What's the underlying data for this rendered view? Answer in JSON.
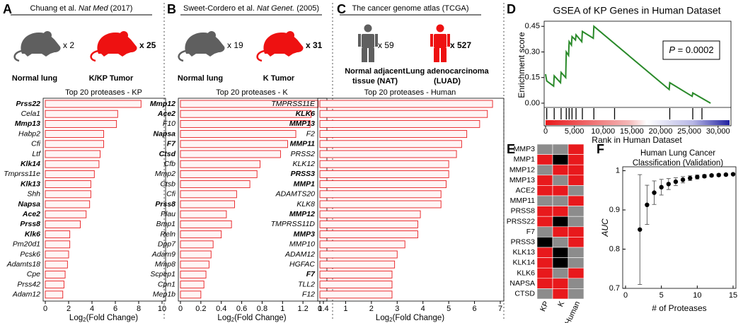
{
  "chart_data": [
    {
      "type": "bar",
      "panel": "A",
      "icon": "mouse",
      "source_parts": [
        "Chuang et al. ",
        "Nat Med",
        " (2017)"
      ],
      "groups": [
        {
          "label_lines": [
            "Normal lung"
          ],
          "count": "x 2",
          "color": "#5f5f5f",
          "label_color": "#000000"
        },
        {
          "label_lines": [
            "K/KP Tumor"
          ],
          "count": "x 25",
          "color": "#ee1111",
          "label_color": "#ee1111"
        }
      ],
      "title": "Top 20 proteases - KP",
      "x_label_parts": [
        "Log",
        "2",
        "(Fold Change)"
      ],
      "categories": [
        "Prss22",
        "Cela1",
        "Mmp13",
        "Habp2",
        "Cfi",
        "Ltf",
        "Klk14",
        "Tmprss11e",
        "Klk13",
        "Shh",
        "Napsa",
        "Ace2",
        "Prss8",
        "Klk6",
        "Pm20d1",
        "Pcsk6",
        "Adamts18",
        "Cpe",
        "Prss42",
        "Adam12"
      ],
      "highlight": [
        true,
        false,
        true,
        false,
        false,
        false,
        true,
        false,
        true,
        false,
        true,
        true,
        true,
        true,
        false,
        false,
        false,
        false,
        false,
        false
      ],
      "values": [
        8.2,
        6.2,
        6.1,
        5.0,
        5.0,
        4.7,
        4.6,
        4.2,
        3.9,
        3.9,
        3.8,
        3.5,
        3.0,
        2.1,
        2.1,
        2.0,
        1.9,
        1.7,
        1.6,
        1.5
      ],
      "xlim": [
        0,
        10
      ],
      "xticks": [
        0,
        2,
        4,
        6,
        8,
        10
      ],
      "color": "#e8191c",
      "highlight_color": "#e8191c"
    },
    {
      "type": "bar",
      "panel": "B",
      "icon": "mouse",
      "source_parts": [
        "Sweet-Cordero et al. ",
        "Nat Genet.",
        " (2005)"
      ],
      "groups": [
        {
          "label_lines": [
            "Normal lung"
          ],
          "count": "x 19",
          "color": "#5f5f5f",
          "label_color": "#000000"
        },
        {
          "label_lines": [
            "K Tumor"
          ],
          "count": "x 31",
          "color": "#ee1111",
          "label_color": "#ee1111"
        }
      ],
      "title": "Top 20 proteases - K",
      "x_label_parts": [
        "Log",
        "2",
        "(Fold Change)"
      ],
      "categories": [
        "Mmp12",
        "Ace2",
        "F10",
        "Napsa",
        "F7",
        "Ctsd",
        "Cfb",
        "Mmp2",
        "Ctsb",
        "Cfi",
        "Prss8",
        "Plau",
        "Bmp1",
        "Reln",
        "Dpp7",
        "Adam9",
        "Mmp8",
        "Scpep1",
        "Cpn1",
        "Mep1b"
      ],
      "highlight": [
        true,
        true,
        false,
        true,
        true,
        true,
        false,
        false,
        false,
        false,
        true,
        false,
        false,
        false,
        false,
        false,
        false,
        false,
        false,
        false
      ],
      "values": [
        1.35,
        1.28,
        1.27,
        1.13,
        1.05,
        0.98,
        0.78,
        0.75,
        0.68,
        0.55,
        0.53,
        0.45,
        0.5,
        0.4,
        0.32,
        0.3,
        0.28,
        0.25,
        0.23,
        0.2
      ],
      "xlim": [
        0,
        1.4
      ],
      "xticks": [
        0,
        0.2,
        0.4,
        0.6,
        0.8,
        1,
        1.2,
        1.4
      ],
      "color": "#e8191c",
      "highlight_color": "#e8191c"
    },
    {
      "type": "bar",
      "panel": "C",
      "icon": "person",
      "source_parts": [
        "The cancer genome atlas (TCGA)"
      ],
      "groups": [
        {
          "label_lines": [
            "Normal adjacent",
            "tissue (NAT)"
          ],
          "count": "x 59",
          "color": "#5f5f5f",
          "label_color": "#000000"
        },
        {
          "label_lines": [
            "Lung adenocarcinoma",
            "(LUAD)"
          ],
          "count": "x 527",
          "color": "#ee1111",
          "label_color": "#ee1111"
        }
      ],
      "title": "Top 20 proteases - Human",
      "x_label_parts": [
        "Log",
        "2",
        "(Fold Change)"
      ],
      "categories": [
        "TMPRSS11E",
        "KLK6",
        "MMP13",
        "F2",
        "MMP11",
        "PRSS2",
        "KLK12",
        "PRSS3",
        "MMP1",
        "ADAMTS20",
        "KLK8",
        "MMP12",
        "TMPRSS11D",
        "MMP3",
        "MMP10",
        "ADAM12",
        "HGFAC",
        "F7",
        "TLL2",
        "F12"
      ],
      "highlight": [
        false,
        true,
        true,
        false,
        true,
        false,
        false,
        true,
        true,
        false,
        false,
        true,
        false,
        true,
        false,
        false,
        false,
        true,
        false,
        false
      ],
      "values": [
        6.7,
        6.5,
        6.2,
        5.7,
        5.5,
        5.3,
        5.0,
        5.0,
        4.9,
        4.7,
        4.7,
        3.9,
        3.8,
        3.8,
        3.3,
        3.0,
        2.9,
        2.8,
        2.8,
        2.8
      ],
      "xlim": [
        0,
        7
      ],
      "xticks": [
        0,
        1,
        2,
        3,
        4,
        5,
        6,
        7
      ],
      "color": "#e8191c",
      "highlight_color": "#e8191c"
    },
    {
      "type": "line",
      "panel": "D",
      "title": "GSEA of KP Genes in Human Dataset",
      "y_label": "Enrichment score",
      "x_label": "Rank in Human Dataset",
      "annotation_parts": [
        "P",
        " = 0.0002"
      ],
      "x": [
        0,
        200,
        1400,
        1500,
        2600,
        2700,
        3500,
        3600,
        4000,
        4100,
        4500,
        4600,
        5200,
        5300,
        6300,
        6400,
        8300,
        8400,
        21500,
        21600,
        25500,
        25600,
        28700
      ],
      "series": [
        {
          "color": "#2a8a2a",
          "values": [
            0.17,
            0.13,
            0.1,
            0.16,
            0.12,
            0.18,
            0.15,
            0.3,
            0.28,
            0.36,
            0.34,
            0.39,
            0.37,
            0.4,
            0.36,
            0.42,
            0.38,
            0.45,
            0.08,
            0.12,
            0.04,
            0.06,
            0.0
          ]
        }
      ],
      "hits": [
        200,
        1500,
        2700,
        3600,
        4100,
        4600,
        5300,
        6400,
        8400,
        12000,
        21600,
        25600,
        27200
      ],
      "hit_color": "#000000",
      "xlim": [
        0,
        32000
      ],
      "xticks": [
        0,
        {
          "value": 5000,
          "label": "5,000"
        },
        {
          "value": 10000,
          "label": "10,000"
        },
        {
          "value": 15000,
          "label": "15,000"
        },
        {
          "value": 20000,
          "label": "20,000"
        },
        {
          "value": 25000,
          "label": "25,000"
        },
        {
          "value": 30000,
          "label": "30,000"
        }
      ],
      "ylim": [
        -0.025,
        0.48
      ],
      "yticks": [
        {
          "value": 0,
          "label": "0.00"
        },
        0.15,
        {
          "value": 0.3,
          "label": "0.30"
        },
        0.45
      ]
    },
    {
      "type": "heatmap",
      "panel": "E",
      "rows": [
        "MMP3",
        "MMP1",
        "MMP12",
        "MMP13",
        "ACE2",
        "MMP11",
        "PRSS8",
        "PRSS22",
        "F7",
        "PRSS3",
        "KLK13",
        "KLK14",
        "KLK6",
        "NAPSA",
        "CTSD"
      ],
      "columns": [
        "KP",
        "K",
        "Human"
      ],
      "cell_colors": [
        [
          "#8c8c8c",
          "#8c8c8c",
          "#e8191c"
        ],
        [
          "#e8191c",
          "#000000",
          "#e8191c"
        ],
        [
          "#8c8c8c",
          "#e8191c",
          "#e8191c"
        ],
        [
          "#e8191c",
          "#8c8c8c",
          "#e8191c"
        ],
        [
          "#e8191c",
          "#e8191c",
          "#8c8c8c"
        ],
        [
          "#8c8c8c",
          "#8c8c8c",
          "#e8191c"
        ],
        [
          "#e8191c",
          "#e8191c",
          "#8c8c8c"
        ],
        [
          "#e8191c",
          "#000000",
          "#8c8c8c"
        ],
        [
          "#8c8c8c",
          "#e8191c",
          "#e8191c"
        ],
        [
          "#000000",
          "#8c8c8c",
          "#e8191c"
        ],
        [
          "#e8191c",
          "#000000",
          "#8c8c8c"
        ],
        [
          "#e8191c",
          "#000000",
          "#8c8c8c"
        ],
        [
          "#e8191c",
          "#8c8c8c",
          "#e8191c"
        ],
        [
          "#e8191c",
          "#e8191c",
          "#8c8c8c"
        ],
        [
          "#8c8c8c",
          "#e8191c",
          "#8c8c8c"
        ]
      ]
    },
    {
      "type": "scatter",
      "panel": "F",
      "title_lines": [
        "Human Lung Cancer",
        "Classification (Validation)"
      ],
      "x_label": "# of Proteases",
      "y_label": "AUC",
      "x": [
        2,
        3,
        4,
        5,
        6,
        7,
        8,
        9,
        10,
        11,
        12,
        13,
        14,
        15
      ],
      "values": [
        0.85,
        0.913,
        0.944,
        0.958,
        0.966,
        0.972,
        0.977,
        0.981,
        0.984,
        0.986,
        0.988,
        0.989,
        0.99,
        0.991
      ],
      "errors": [
        0.14,
        0.05,
        0.03,
        0.02,
        0.014,
        0.01,
        0.008,
        0.006,
        0.005,
        0.004,
        0.003,
        0.003,
        0.002,
        0.002
      ],
      "color": "#000000",
      "xlim": [
        0,
        15
      ],
      "xticks": [
        0,
        5,
        10,
        15
      ],
      "ylim": [
        0.7,
        1.01
      ],
      "yticks": [
        0.7,
        0.8,
        0.9,
        1
      ]
    }
  ]
}
